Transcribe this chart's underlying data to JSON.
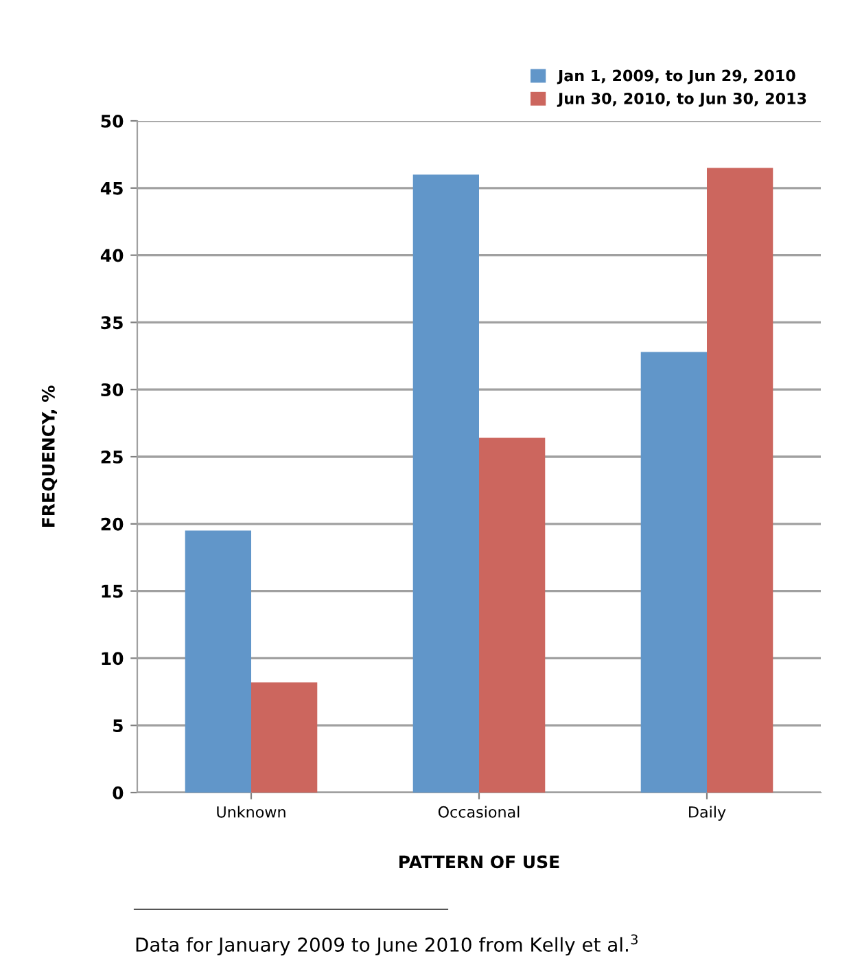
{
  "chart_data": {
    "type": "bar",
    "xlabel": "PATTERN OF USE",
    "ylabel": "FREQUENCY, %",
    "categories": [
      "Unknown",
      "Occasional",
      "Daily"
    ],
    "series": [
      {
        "name": "Jan 1, 2009, to Jun 29, 2010",
        "color": "#6196c9",
        "values": [
          19.5,
          46.0,
          32.8
        ]
      },
      {
        "name": "Jun 30, 2010, to Jun 30, 2013",
        "color": "#cc665e",
        "values": [
          8.2,
          26.4,
          46.5
        ]
      }
    ],
    "ylim": [
      0,
      50
    ],
    "yticks": [
      0,
      5,
      10,
      15,
      20,
      25,
      30,
      35,
      40,
      45,
      50
    ],
    "grid": "y",
    "legend": "top right",
    "annotations": [
      "Data for January 2009 to June 2010 from Kelly et al.$^{3}$"
    ]
  }
}
